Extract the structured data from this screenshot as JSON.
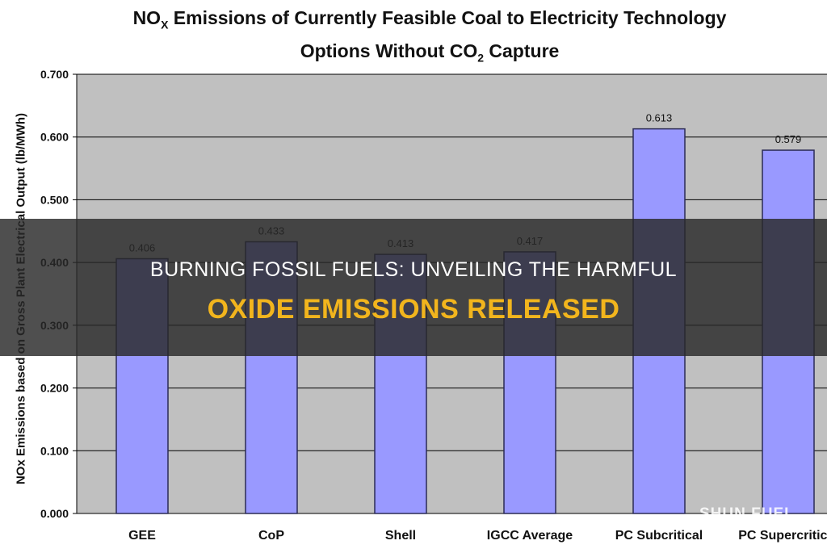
{
  "chart_data": {
    "type": "bar",
    "title_prefix": "NO",
    "title_sub1": "X",
    "title_rest1": " Emissions of Currently Feasible Coal to Electricity Technology",
    "title_line2_prefix": "Options Without CO",
    "title_sub2": "2",
    "title_line2_rest": " Capture",
    "ylabel": "NOx Emissions based on Gross Plant Electrical Output (lb/MWh)",
    "categories": [
      "GEE",
      "CoP",
      "Shell",
      "IGCC Average",
      "PC Subcritical",
      "PC Supercritical"
    ],
    "values": [
      0.406,
      0.433,
      0.413,
      0.417,
      0.613,
      0.579
    ],
    "data_labels": [
      "0.406",
      "0.433",
      "0.413",
      "0.417",
      "0.613",
      "0.579"
    ],
    "ylim": [
      0,
      0.7
    ],
    "yticks": [
      "0.000",
      "0.100",
      "0.200",
      "0.300",
      "0.400",
      "0.500",
      "0.600",
      "0.700"
    ],
    "grid": true,
    "colors": {
      "bar": "#9999ff",
      "bar_edge": "#2b2b55",
      "plot_bg": "#c0c0c0"
    }
  },
  "overlay": {
    "line1": "BURNING FOSSIL FUELS: UNVEILING THE HARMFUL",
    "line2": "OXIDE EMISSIONS RELEASED",
    "watermark": "SHUN FUEL"
  }
}
